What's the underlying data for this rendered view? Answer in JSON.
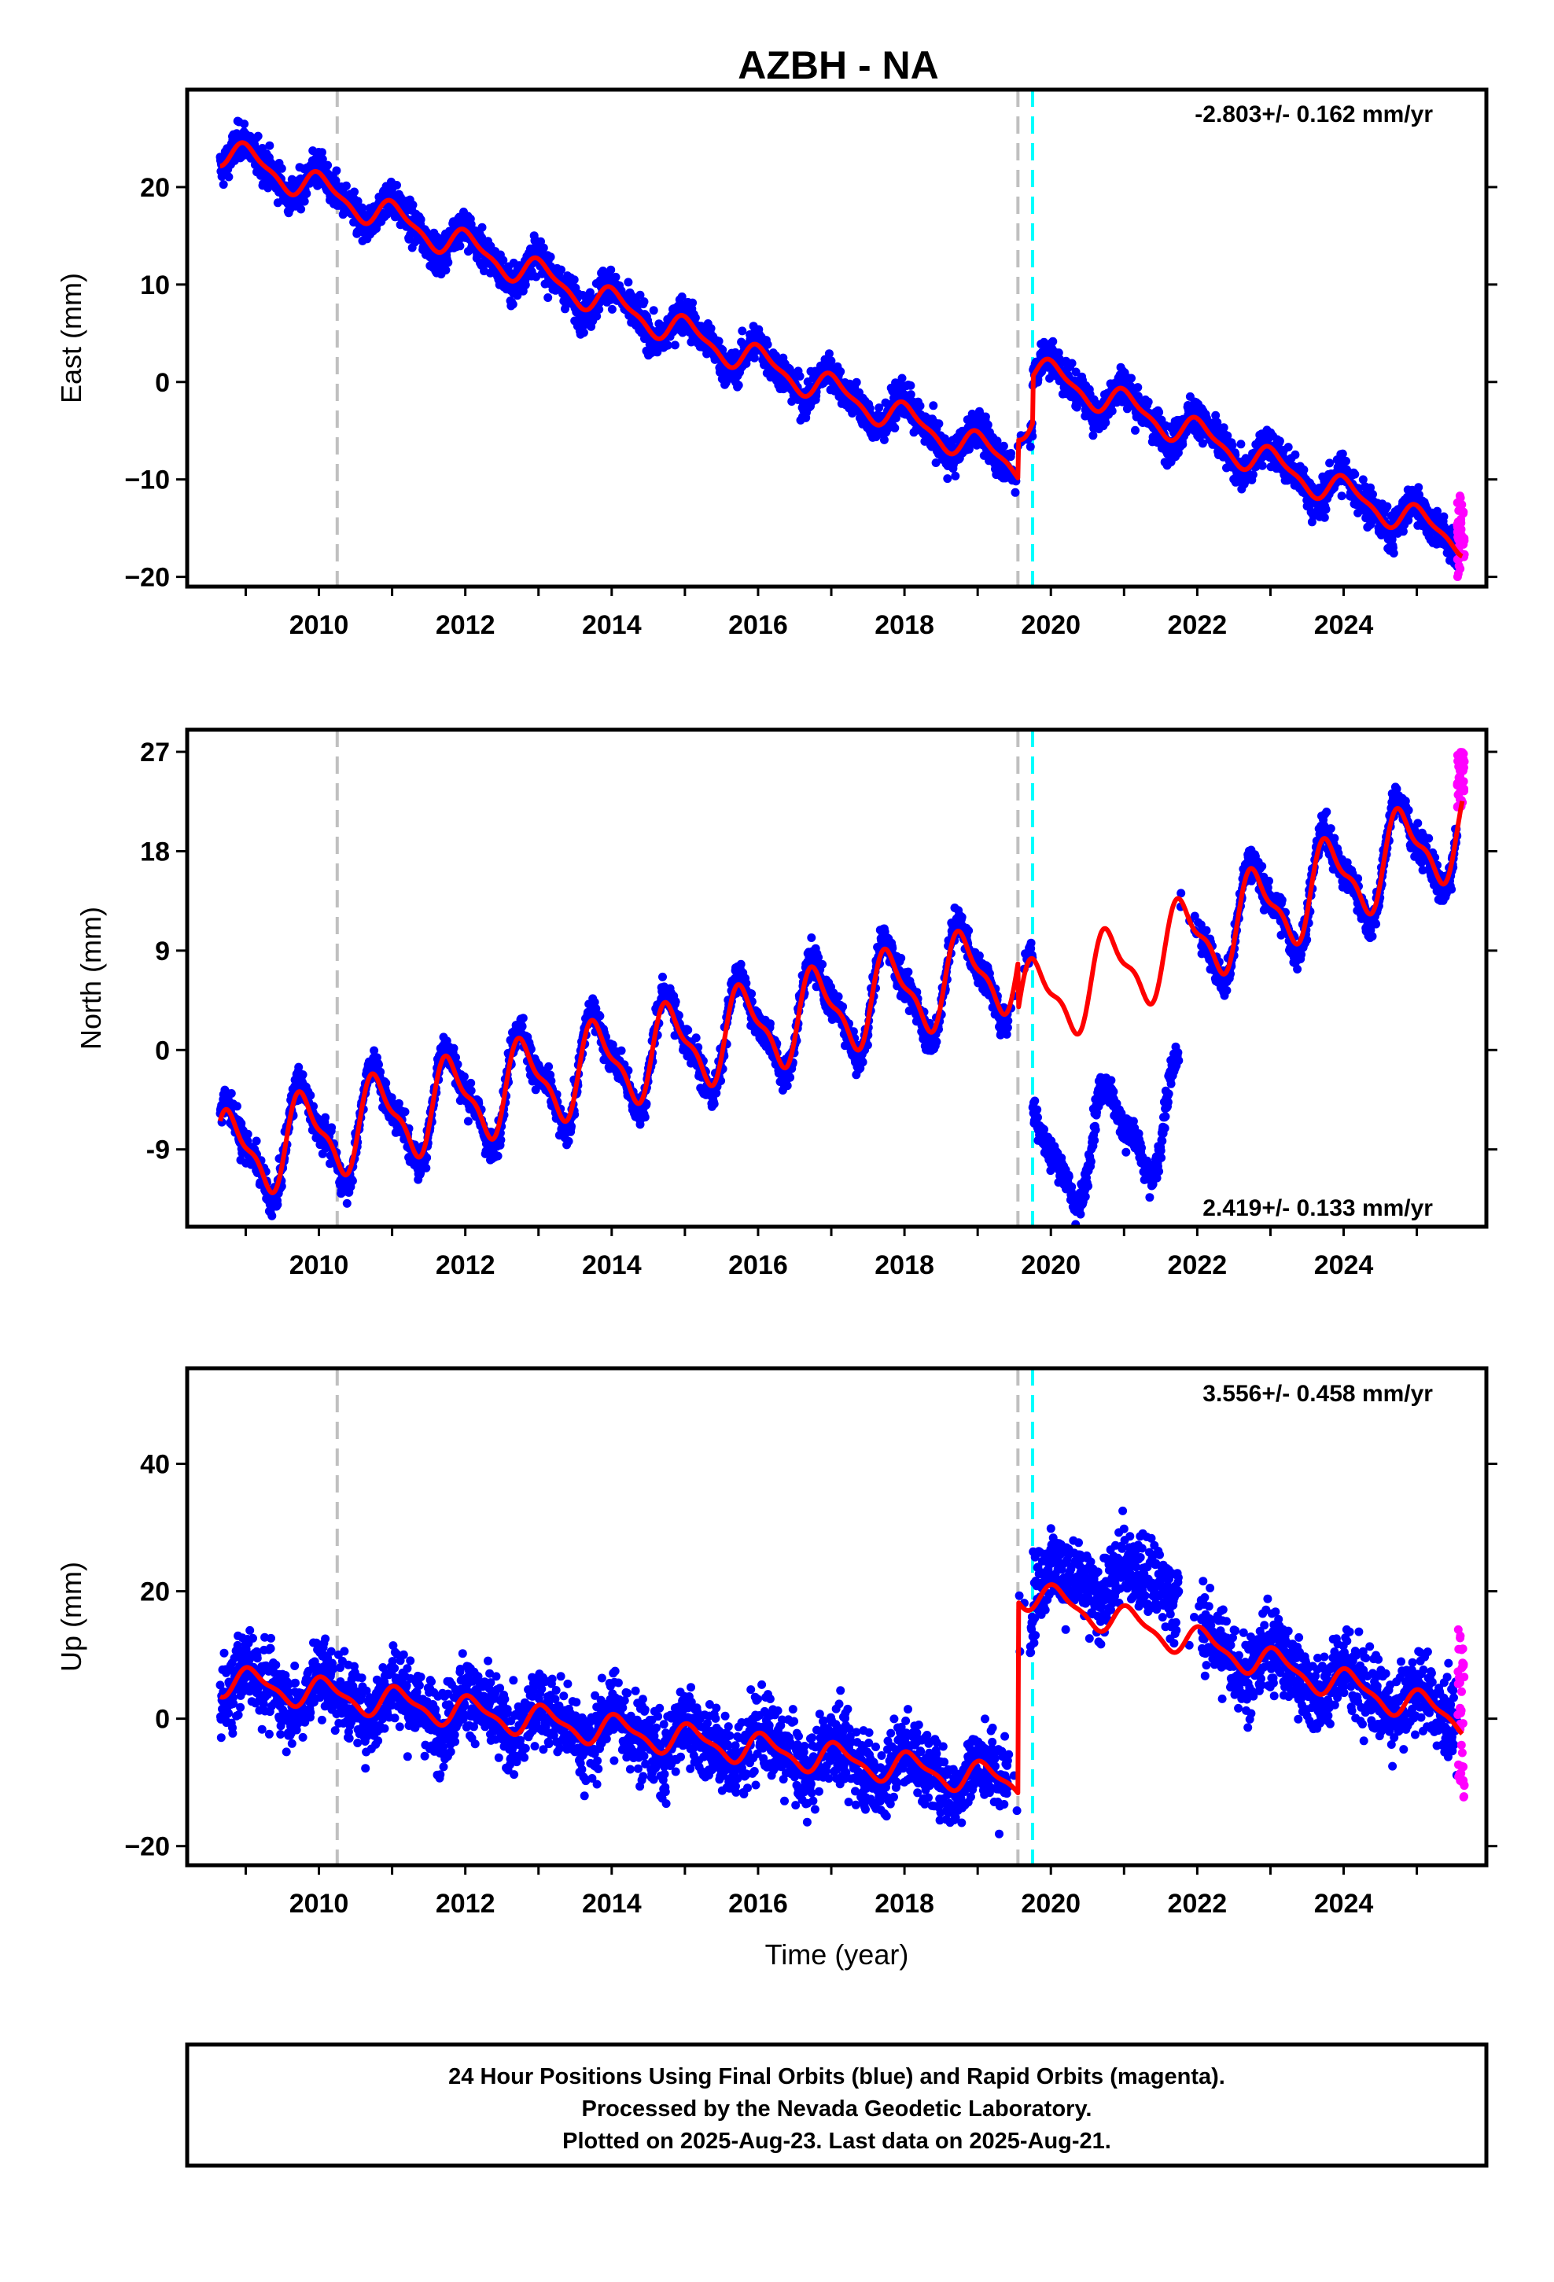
{
  "title": "AZBH - NA",
  "colors": {
    "final_orbits": "#0000ff",
    "rapid_orbits": "#ff00ff",
    "model": "#ff0000",
    "equipment_change": "#c0c0c0",
    "earthquake": "#00ffff"
  },
  "xlabel": "Time (year)",
  "xticks": [
    "2010",
    "2012",
    "2014",
    "2016",
    "2018",
    "2020",
    "2022",
    "2024"
  ],
  "event_lines": [
    {
      "type": "equipment_change",
      "x": 2010.25
    },
    {
      "type": "equipment_change",
      "x": 2019.55
    },
    {
      "type": "earthquake",
      "x": 2019.75
    }
  ],
  "caption": [
    "24 Hour Positions Using Final Orbits (blue) and Rapid Orbits (magenta).",
    "Processed by the Nevada Geodetic Laboratory.",
    "Plotted on 2025-Aug-23. Last data on 2025-Aug-21."
  ],
  "chart_data": [
    {
      "type": "scatter",
      "component": "east",
      "ylabel": "East (mm)",
      "rate_text": "-2.803+/- 0.162 mm/yr",
      "rate_position": "top-right",
      "xlim": [
        2008.2,
        2025.95
      ],
      "ylim": [
        -21,
        30
      ],
      "yticks": [
        "20",
        "10",
        "0",
        "−10",
        "−20"
      ],
      "ytick_values": [
        20,
        10,
        0,
        -10,
        -20
      ],
      "trend": {
        "segments": [
          {
            "x": [
              2008.65,
              2019.55
            ],
            "y": [
              23.8,
              -8.4
            ]
          },
          {
            "x": [
              2019.55,
              2019.75
            ],
            "y": [
              -4.5,
              -3.5
            ]
          },
          {
            "x": [
              2019.75,
              2025.62
            ],
            "y": [
              1.3,
              -16.2
            ]
          }
        ]
      },
      "seasonal": {
        "amplitude": 1.7,
        "phase_year": 0.8
      },
      "noise": 1.3,
      "rapid": {
        "x": [
          2025.55,
          2025.65
        ],
        "y": [
          -20,
          -11.5
        ]
      }
    },
    {
      "type": "scatter",
      "component": "north",
      "ylabel": "North (mm)",
      "rate_text": "2.419+/- 0.133 mm/yr",
      "rate_position": "bottom-right",
      "xlim": [
        2008.2,
        2025.95
      ],
      "ylim": [
        -16,
        29
      ],
      "yticks": [
        "27",
        "18",
        "9",
        "0",
        "-9"
      ],
      "ytick_values": [
        27,
        18,
        9,
        0,
        -9
      ],
      "trend": {
        "segments": [
          {
            "x": [
              2008.65,
              2019.55
            ],
            "y": [
              -9.8,
              7.8
            ]
          },
          {
            "x": [
              2019.55,
              2025.62
            ],
            "y": [
              3.5,
              20.0
            ]
          }
        ]
      },
      "observed_offset": {
        "x": [
          2019.75,
          2021.75
        ],
        "y": -10.5
      },
      "seasonal": {
        "amplitude": 4.3,
        "phase_year": 0.55
      },
      "noise": 1.0,
      "rapid": {
        "x": [
          2025.55,
          2025.65
        ],
        "y": [
          22,
          27
        ]
      }
    },
    {
      "type": "scatter",
      "component": "up",
      "ylabel": "Up (mm)",
      "rate_text": "3.556+/- 0.458 mm/yr",
      "rate_position": "top-right",
      "xlim": [
        2008.2,
        2025.95
      ],
      "ylim": [
        -23,
        55
      ],
      "yticks": [
        "40",
        "20",
        "0",
        "−20"
      ],
      "ytick_values": [
        40,
        20,
        0,
        -20
      ],
      "trend": {
        "segments": [
          {
            "x": [
              2008.65,
              2019.55
            ],
            "y": [
              6,
              -10
            ]
          },
          {
            "x": [
              2019.55,
              2025.62
            ],
            "y": [
              20,
              0
            ]
          }
        ]
      },
      "observed_offset": {
        "x": [
          2019.75,
          2021.75
        ],
        "y": 21
      },
      "seasonal": {
        "amplitude": 2.6,
        "phase_year": 0.85
      },
      "noise": 4.2,
      "rapid": {
        "x": [
          2025.55,
          2025.65
        ],
        "y": [
          -13,
          14
        ]
      }
    }
  ]
}
